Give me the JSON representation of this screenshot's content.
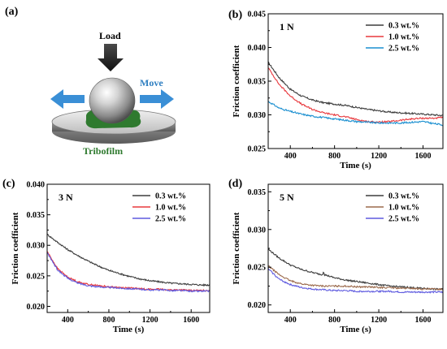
{
  "colors": {
    "black_series": "#3d3d3d",
    "red_series": "#e8383d",
    "blue_series": "#1a8fd0",
    "brown_series": "#9b6a4c",
    "purple_series": "#5e5adf",
    "move_text": "#2f7fc1",
    "arrow_blue": "#3a8fd6",
    "tribofilm": "#2f7a2f"
  },
  "schematic": {
    "panel_label": "(a)",
    "load_label": "Load",
    "move_label": "Move",
    "tribofilm_label": "Tribofilm",
    "icons": [
      "down-arrow-icon",
      "left-arrow-icon",
      "right-arrow-icon",
      "steel-ball-icon",
      "disc-icon"
    ]
  },
  "chart_data": [
    {
      "id": "b",
      "type": "line",
      "panel_label": "(b)",
      "annotation": "1 N",
      "xlabel": "Time (s)",
      "ylabel": "Friction coefficient",
      "xlim": [
        200,
        1780
      ],
      "ylim": [
        0.025,
        0.045
      ],
      "xticks": [
        400,
        800,
        1200,
        1600
      ],
      "yticks": [
        0.025,
        0.03,
        0.035,
        0.04,
        0.045
      ],
      "ytick_labels": [
        "0.025",
        "0.030",
        "0.035",
        "0.040",
        "0.045"
      ],
      "legend_position": "top-right",
      "series": [
        {
          "name": "0.3 wt.%",
          "color": "#3d3d3d",
          "x": [
            200,
            300,
            400,
            500,
            600,
            700,
            800,
            900,
            1000,
            1100,
            1200,
            1300,
            1400,
            1500,
            1600,
            1700,
            1780
          ],
          "y": [
            0.0378,
            0.0355,
            0.0338,
            0.0328,
            0.0322,
            0.0318,
            0.0316,
            0.0314,
            0.0311,
            0.0308,
            0.0306,
            0.0304,
            0.0303,
            0.0302,
            0.0301,
            0.03,
            0.0299
          ]
        },
        {
          "name": "1.0 wt.%",
          "color": "#e8383d",
          "x": [
            200,
            300,
            400,
            500,
            600,
            700,
            800,
            900,
            1000,
            1100,
            1200,
            1300,
            1400,
            1500,
            1600,
            1700,
            1780
          ],
          "y": [
            0.037,
            0.0345,
            0.0328,
            0.0316,
            0.0308,
            0.0303,
            0.03,
            0.0297,
            0.0293,
            0.029,
            0.0289,
            0.029,
            0.0292,
            0.0294,
            0.0295,
            0.0295,
            0.0296
          ]
        },
        {
          "name": "2.5 wt.%",
          "color": "#1a8fd0",
          "x": [
            200,
            300,
            400,
            500,
            600,
            700,
            800,
            900,
            1000,
            1100,
            1200,
            1300,
            1400,
            1500,
            1600,
            1700,
            1780
          ],
          "y": [
            0.032,
            0.031,
            0.0305,
            0.0301,
            0.0298,
            0.0296,
            0.0294,
            0.0292,
            0.029,
            0.0289,
            0.0288,
            0.0288,
            0.0288,
            0.0289,
            0.029,
            0.0287,
            0.0285
          ]
        }
      ]
    },
    {
      "id": "c",
      "type": "line",
      "panel_label": "(c)",
      "annotation": "3 N",
      "xlabel": "Time (s)",
      "ylabel": "Friction coefficient",
      "xlim": [
        200,
        1780
      ],
      "ylim": [
        0.019,
        0.04
      ],
      "xticks": [
        400,
        800,
        1200,
        1600
      ],
      "yticks": [
        0.02,
        0.025,
        0.03,
        0.035,
        0.04
      ],
      "ytick_labels": [
        "0.020",
        "0.025",
        "0.030",
        "0.035",
        "0.040"
      ],
      "legend_position": "top-right",
      "series": [
        {
          "name": "0.3 wt.%",
          "color": "#3d3d3d",
          "x": [
            200,
            300,
            400,
            500,
            600,
            700,
            800,
            900,
            1000,
            1100,
            1200,
            1300,
            1400,
            1500,
            1600,
            1700,
            1780
          ],
          "y": [
            0.0318,
            0.0305,
            0.0293,
            0.0283,
            0.0274,
            0.0266,
            0.0259,
            0.0254,
            0.0249,
            0.0245,
            0.0242,
            0.024,
            0.0238,
            0.0237,
            0.0236,
            0.0235,
            0.0235
          ]
        },
        {
          "name": "1.0 wt.%",
          "color": "#e8383d",
          "x": [
            200,
            250,
            300,
            400,
            500,
            600,
            700,
            800,
            900,
            1000,
            1100,
            1200,
            1300,
            1400,
            1500,
            1600,
            1700,
            1780
          ],
          "y": [
            0.029,
            0.0276,
            0.0262,
            0.0248,
            0.024,
            0.0236,
            0.0234,
            0.0232,
            0.0231,
            0.023,
            0.0229,
            0.0228,
            0.0228,
            0.0227,
            0.0227,
            0.0226,
            0.0226,
            0.0226
          ]
        },
        {
          "name": "2.5 wt.%",
          "color": "#5e5adf",
          "x": [
            200,
            250,
            300,
            400,
            500,
            600,
            700,
            800,
            900,
            1000,
            1100,
            1200,
            1300,
            1400,
            1500,
            1600,
            1700,
            1780
          ],
          "y": [
            0.0288,
            0.0274,
            0.026,
            0.0246,
            0.0238,
            0.0234,
            0.0232,
            0.0231,
            0.023,
            0.0229,
            0.0228,
            0.0227,
            0.0227,
            0.0226,
            0.0226,
            0.0225,
            0.0225,
            0.0225
          ]
        }
      ]
    },
    {
      "id": "d",
      "type": "line",
      "panel_label": "(d)",
      "annotation": "5 N",
      "xlabel": "Time (s)",
      "ylabel": "Friction coefficient",
      "xlim": [
        200,
        1780
      ],
      "ylim": [
        0.019,
        0.036
      ],
      "xticks": [
        400,
        800,
        1200,
        1600
      ],
      "yticks": [
        0.02,
        0.025,
        0.03,
        0.035
      ],
      "ytick_labels": [
        "0.020",
        "0.025",
        "0.030",
        "0.035"
      ],
      "legend_position": "top-right",
      "series": [
        {
          "name": "0.3 wt.%",
          "color": "#3d3d3d",
          "x": [
            200,
            300,
            400,
            500,
            600,
            690,
            700,
            710,
            800,
            900,
            1000,
            1100,
            1200,
            1300,
            1400,
            1500,
            1600,
            1700,
            1780
          ],
          "y": [
            0.0274,
            0.0262,
            0.0253,
            0.0247,
            0.0243,
            0.024,
            0.0245,
            0.024,
            0.0236,
            0.0233,
            0.0231,
            0.0229,
            0.0227,
            0.0225,
            0.0224,
            0.0223,
            0.0222,
            0.0221,
            0.0221
          ]
        },
        {
          "name": "1.0 wt.%",
          "color": "#9b6a4c",
          "x": [
            200,
            300,
            400,
            500,
            600,
            700,
            800,
            900,
            1000,
            1100,
            1200,
            1300,
            1400,
            1500,
            1600,
            1700,
            1780
          ],
          "y": [
            0.0252,
            0.024,
            0.0232,
            0.0228,
            0.0226,
            0.0225,
            0.0225,
            0.0225,
            0.0224,
            0.0224,
            0.0223,
            0.0223,
            0.0222,
            0.0222,
            0.0221,
            0.0221,
            0.0221
          ]
        },
        {
          "name": "2.5 wt.%",
          "color": "#5e5adf",
          "x": [
            200,
            300,
            400,
            500,
            600,
            700,
            800,
            900,
            1000,
            1100,
            1200,
            1300,
            1400,
            1500,
            1600,
            1700,
            1780
          ],
          "y": [
            0.0248,
            0.0234,
            0.0227,
            0.0223,
            0.0221,
            0.022,
            0.0219,
            0.0219,
            0.0218,
            0.0218,
            0.0218,
            0.0218,
            0.0217,
            0.0217,
            0.0217,
            0.0217,
            0.0217
          ]
        }
      ]
    }
  ]
}
